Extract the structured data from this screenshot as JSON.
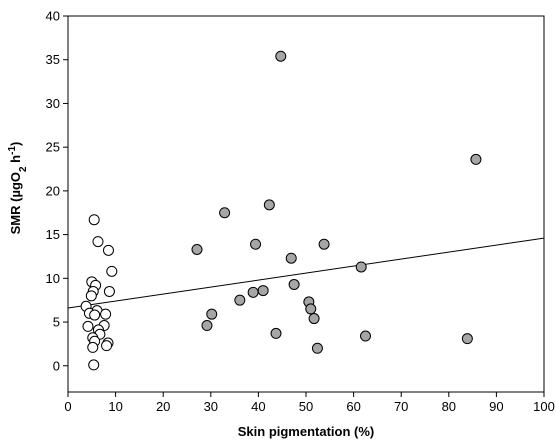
{
  "chart_data": {
    "type": "scatter",
    "title": "",
    "xlabel": "Skin pigmentation (%)",
    "ylabel_parts": {
      "main": "SMR (µgO",
      "sub": "2",
      "mid": " h",
      "sup": "-1",
      "end": ")"
    },
    "xlim": [
      0,
      100
    ],
    "ylim": [
      -3,
      40
    ],
    "xticks": [
      0,
      10,
      20,
      30,
      40,
      50,
      60,
      70,
      80,
      90,
      100
    ],
    "yticks": [
      0,
      5,
      10,
      15,
      20,
      25,
      30,
      35,
      40
    ],
    "grid": false,
    "series": [
      {
        "marker": "open-circle",
        "fill": "#ffffff",
        "points": [
          [
            5.5,
            16.7
          ],
          [
            6.3,
            14.2
          ],
          [
            8.5,
            13.2
          ],
          [
            9.2,
            10.8
          ],
          [
            5.0,
            9.6
          ],
          [
            5.8,
            9.2
          ],
          [
            5.3,
            8.5
          ],
          [
            8.7,
            8.5
          ],
          [
            4.9,
            8.0
          ],
          [
            3.8,
            6.8
          ],
          [
            6.1,
            6.3
          ],
          [
            4.5,
            6.0
          ],
          [
            7.9,
            5.9
          ],
          [
            5.6,
            5.8
          ],
          [
            4.2,
            4.5
          ],
          [
            7.6,
            4.6
          ],
          [
            6.4,
            4.1
          ],
          [
            6.7,
            3.6
          ],
          [
            5.2,
            3.2
          ],
          [
            5.6,
            2.8
          ],
          [
            8.4,
            2.6
          ],
          [
            8.1,
            2.3
          ],
          [
            5.2,
            2.1
          ],
          [
            5.4,
            0.1
          ]
        ]
      },
      {
        "marker": "filled-circle",
        "fill": "#a6a6a6",
        "points": [
          [
            44.7,
            35.4
          ],
          [
            85.7,
            23.6
          ],
          [
            42.3,
            18.4
          ],
          [
            32.9,
            17.5
          ],
          [
            27.1,
            13.3
          ],
          [
            39.4,
            13.9
          ],
          [
            53.8,
            13.9
          ],
          [
            46.9,
            12.3
          ],
          [
            61.6,
            11.3
          ],
          [
            47.5,
            9.3
          ],
          [
            41.0,
            8.6
          ],
          [
            38.9,
            8.4
          ],
          [
            36.1,
            7.5
          ],
          [
            50.6,
            7.3
          ],
          [
            51.0,
            6.5
          ],
          [
            30.2,
            5.9
          ],
          [
            51.7,
            5.4
          ],
          [
            29.2,
            4.6
          ],
          [
            43.7,
            3.7
          ],
          [
            62.5,
            3.4
          ],
          [
            83.9,
            3.1
          ],
          [
            52.4,
            2.0
          ]
        ]
      }
    ],
    "regression_line": {
      "x": [
        0,
        100
      ],
      "y": [
        6.6,
        14.6
      ]
    },
    "colors": {
      "axis": "#000000",
      "open_fill": "#ffffff",
      "filled_fill": "#a6a6a6",
      "marker_stroke": "#000000"
    }
  }
}
